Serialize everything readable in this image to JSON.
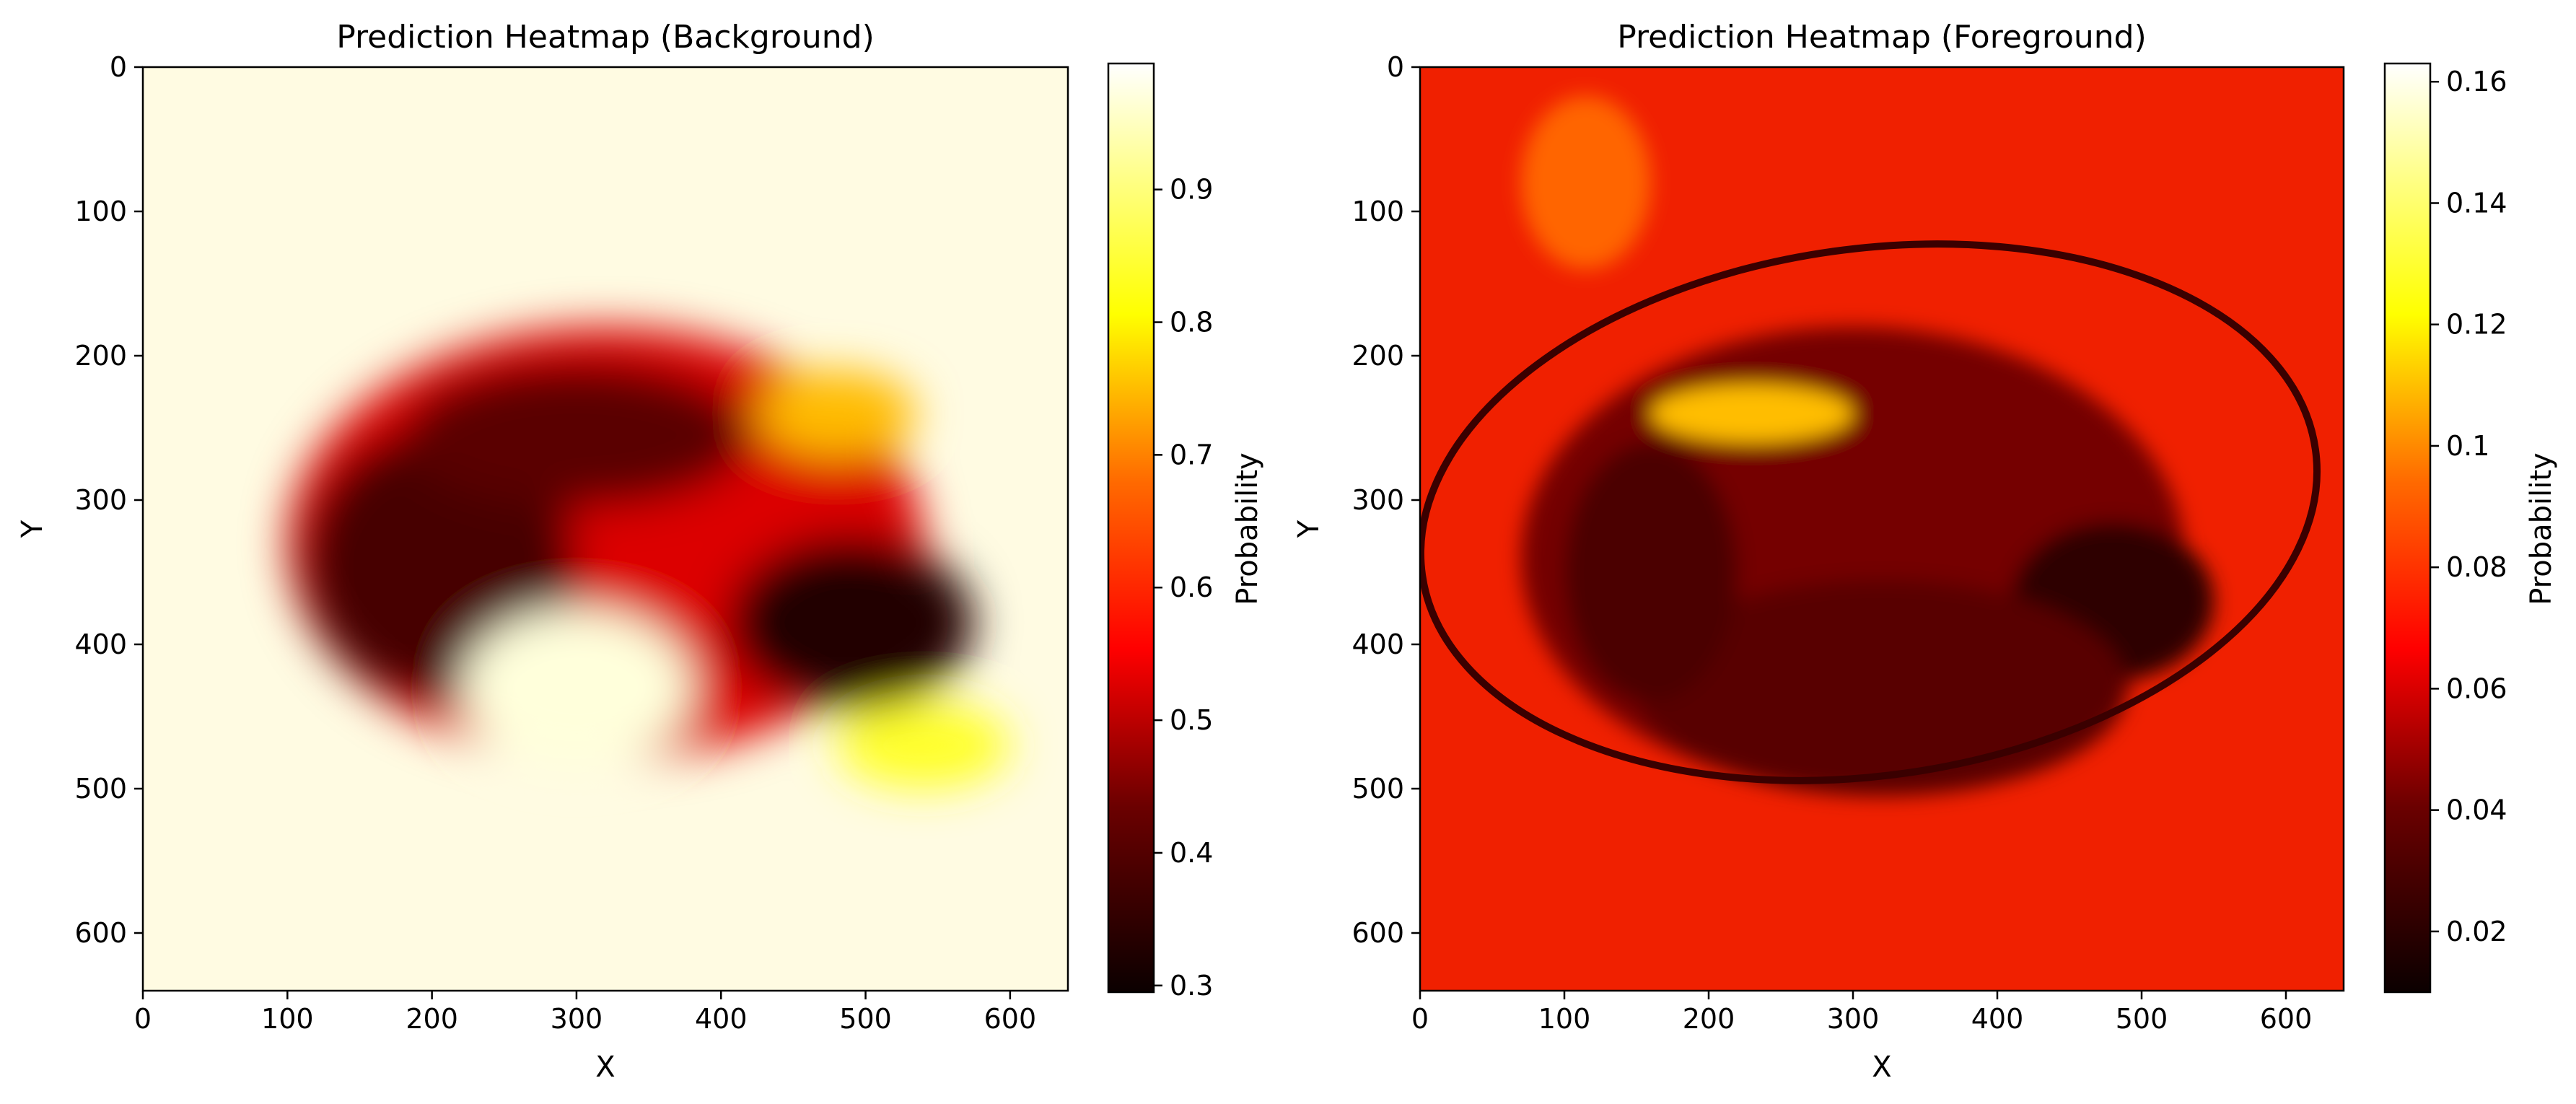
{
  "chart_data": [
    {
      "type": "heatmap",
      "title": "Prediction Heatmap (Background)",
      "xlabel": "X",
      "ylabel": "Y",
      "xlim": [
        0,
        640
      ],
      "ylim": [
        640,
        0
      ],
      "x_ticks": [
        0,
        100,
        200,
        300,
        400,
        500,
        600
      ],
      "y_ticks": [
        0,
        100,
        200,
        300,
        400,
        500,
        600
      ],
      "colormap": "hot",
      "colorbar": {
        "label": "Probability",
        "min": 0.295,
        "max": 0.995,
        "ticks": [
          0.3,
          0.4,
          0.5,
          0.6,
          0.7,
          0.8,
          0.9
        ]
      },
      "regions": [
        {
          "cx": 320,
          "cy": 330,
          "rx": 220,
          "ry": 150,
          "value": 0.52
        },
        {
          "cx": 205,
          "cy": 345,
          "rx": 95,
          "ry": 95,
          "value": 0.36
        },
        {
          "cx": 300,
          "cy": 255,
          "rx": 120,
          "ry": 50,
          "value": 0.38
        },
        {
          "cx": 490,
          "cy": 385,
          "rx": 85,
          "ry": 60,
          "value": 0.32
        },
        {
          "cx": 540,
          "cy": 470,
          "rx": 60,
          "ry": 30,
          "value": 0.85
        },
        {
          "cx": 300,
          "cy": 430,
          "rx": 80,
          "ry": 55,
          "value": 0.97
        },
        {
          "cx": 480,
          "cy": 240,
          "rx": 55,
          "ry": 30,
          "value": 0.75
        }
      ]
    },
    {
      "type": "heatmap",
      "title": "Prediction Heatmap (Foreground)",
      "xlabel": "X",
      "ylabel": "Y",
      "xlim": [
        0,
        640
      ],
      "ylim": [
        640,
        0
      ],
      "x_ticks": [
        0,
        100,
        200,
        300,
        400,
        500,
        600
      ],
      "y_ticks": [
        0,
        100,
        200,
        300,
        400,
        500,
        600
      ],
      "colormap": "hot",
      "colorbar": {
        "label": "Probability",
        "min": 0.01,
        "max": 0.163,
        "ticks": [
          0.02,
          0.04,
          0.06,
          0.08,
          0.1,
          0.12,
          0.14,
          0.16
        ]
      },
      "regions": [
        {
          "cx": 300,
          "cy": 340,
          "rx": 230,
          "ry": 160,
          "value": 0.035
        },
        {
          "cx": 480,
          "cy": 370,
          "rx": 70,
          "ry": 55,
          "value": 0.018
        },
        {
          "cx": 320,
          "cy": 430,
          "rx": 170,
          "ry": 75,
          "value": 0.028
        },
        {
          "cx": 160,
          "cy": 350,
          "rx": 60,
          "ry": 90,
          "value": 0.025
        },
        {
          "cx": 230,
          "cy": 240,
          "rx": 70,
          "ry": 20,
          "value": 0.11
        },
        {
          "cx": 115,
          "cy": 80,
          "rx": 45,
          "ry": 60,
          "value": 0.09
        }
      ],
      "background_value": 0.065
    }
  ]
}
